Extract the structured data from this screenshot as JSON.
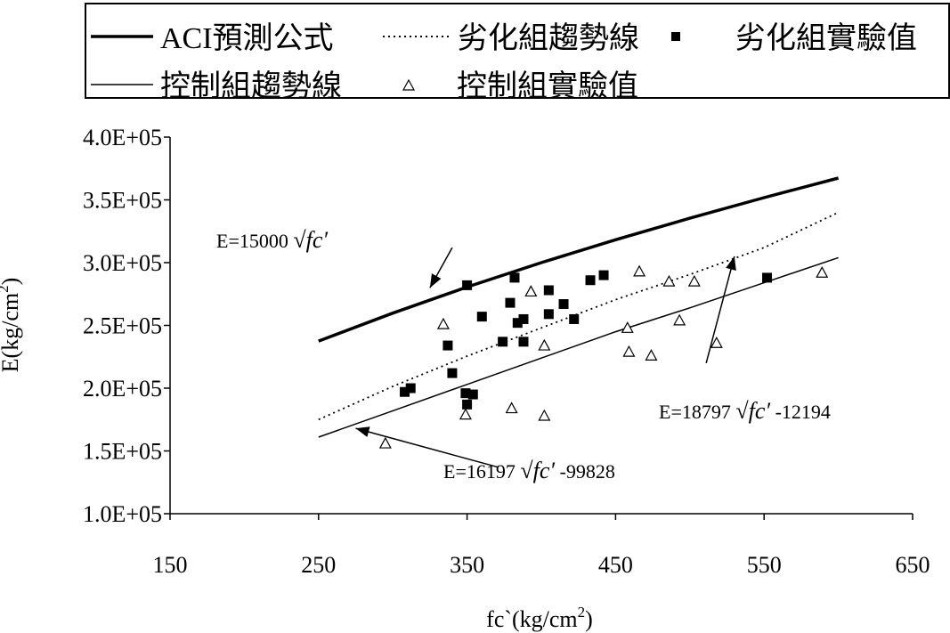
{
  "chart_data": {
    "type": "scatter",
    "title": "",
    "xlabel": "fc`(kg/cm",
    "xlabel_sup": "2",
    "xlabel_close": ")",
    "ylabel": "E(kg/cm",
    "ylabel_sup": "2",
    "ylabel_close": ")",
    "xlim": [
      150,
      650
    ],
    "ylim": [
      100000,
      400000
    ],
    "x_ticks": [
      150,
      250,
      350,
      450,
      550,
      650
    ],
    "y_ticks": [
      100000,
      150000,
      200000,
      250000,
      300000,
      350000,
      400000
    ],
    "x_tick_labels": [
      "150",
      "250",
      "350",
      "450",
      "550",
      "650"
    ],
    "y_tick_labels": [
      "1.0E+05",
      "1.5E+05",
      "2.0E+05",
      "2.5E+05",
      "3.0E+05",
      "3.5E+05",
      "4.0E+05"
    ],
    "grid": false,
    "legend_position": "top",
    "legend": [
      {
        "label": "ACI預測公式",
        "style": "thick-line"
      },
      {
        "label": "劣化組趨勢線",
        "style": "dotted-line"
      },
      {
        "label": "劣化組實驗值",
        "style": "filled-square"
      },
      {
        "label": "控制組趨勢線",
        "style": "thin-line"
      },
      {
        "label": "控制組實驗值",
        "style": "open-triangle"
      }
    ],
    "lines": [
      {
        "name": "ACI預測公式",
        "style": "thick-line",
        "x": [
          250,
          300,
          350,
          400,
          450,
          500,
          550,
          600
        ],
        "y": [
          237500,
          259800,
          280600,
          300000,
          318200,
          335400,
          351800,
          367400
        ]
      },
      {
        "name": "劣化組趨勢線",
        "style": "dotted-line",
        "x": [
          250,
          300,
          350,
          400,
          450,
          500,
          550,
          600
        ],
        "y": [
          175000,
          201400,
          225500,
          248000,
          270500,
          290600,
          312000,
          340000
        ]
      },
      {
        "name": "控制組趨勢線",
        "style": "thin-line",
        "x": [
          250,
          300,
          350,
          400,
          450,
          500,
          550,
          600
        ],
        "y": [
          161000,
          182000,
          203000,
          224000,
          245000,
          264000,
          284000,
          304000
        ]
      }
    ],
    "series": [
      {
        "name": "劣化組實驗值",
        "marker": "square",
        "points": [
          [
            308,
            197000
          ],
          [
            312,
            200000
          ],
          [
            337,
            234000
          ],
          [
            340,
            212000
          ],
          [
            350,
            282000
          ],
          [
            349,
            196000
          ],
          [
            350,
            187000
          ],
          [
            354,
            195000
          ],
          [
            360,
            257000
          ],
          [
            374,
            237000
          ],
          [
            379,
            268000
          ],
          [
            382,
            288000
          ],
          [
            384,
            252000
          ],
          [
            388,
            255000
          ],
          [
            388,
            237000
          ],
          [
            405,
            278000
          ],
          [
            405,
            259000
          ],
          [
            415,
            267000
          ],
          [
            422,
            255000
          ],
          [
            433,
            286000
          ],
          [
            442,
            290000
          ],
          [
            552,
            288000
          ]
        ]
      },
      {
        "name": "控制組實驗值",
        "marker": "triangle",
        "points": [
          [
            295,
            156000
          ],
          [
            334,
            251000
          ],
          [
            349,
            179000
          ],
          [
            380,
            184000
          ],
          [
            393,
            277000
          ],
          [
            402,
            178000
          ],
          [
            402,
            234000
          ],
          [
            458,
            248000
          ],
          [
            459,
            229000
          ],
          [
            466,
            293000
          ],
          [
            474,
            226000
          ],
          [
            486,
            285000
          ],
          [
            493,
            254000
          ],
          [
            503,
            285000
          ],
          [
            518,
            236000
          ],
          [
            589,
            292000
          ]
        ]
      }
    ],
    "annotations": [
      {
        "prefix": "E=15000",
        "radicand": "fc′",
        "suffix": "",
        "from": [
          340,
          312000
        ],
        "to": [
          325,
          280000
        ]
      },
      {
        "prefix": "E=18797",
        "radicand": "fc′",
        "suffix": "-12194",
        "from": [
          511,
          220000
        ],
        "to": [
          530,
          305000
        ]
      },
      {
        "prefix": "E=16197",
        "radicand": "fc′",
        "suffix": "-99828",
        "from": [
          371,
          137000
        ],
        "to": [
          275,
          168000
        ]
      }
    ]
  }
}
